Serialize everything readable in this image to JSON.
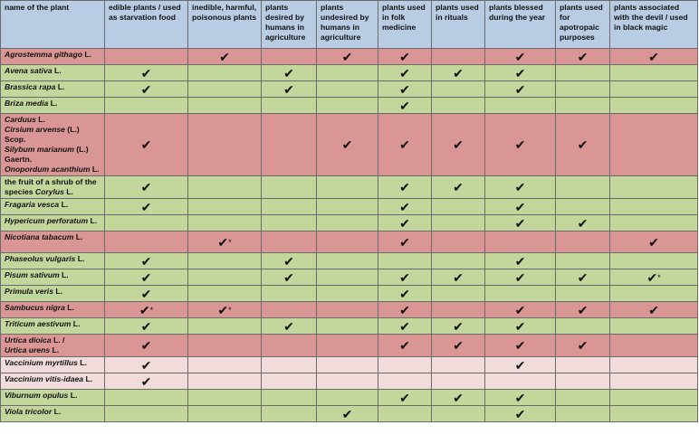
{
  "headers": [
    "name of the plant",
    "edible plants / used as starvation food",
    "inedible, harmful, poisonous plants",
    "plants desired by humans in agriculture",
    "plants undesired by humans in agriculture",
    "plants used in folk medicine",
    "plants used in rituals",
    "plants blessed during the year",
    "plants used for apotropaic purposes",
    "plants associated with the devil / used in black magic"
  ],
  "check_mark": "✔",
  "star_mark": "*",
  "row_colors": {
    "red": "#da9694",
    "green": "#c3d69b",
    "pink": "#f2dcdb",
    "header": "#b8cce4"
  },
  "rows": [
    {
      "color": "red",
      "lines": [
        [
          {
            "t": "Agrostemma githago",
            "i": true
          },
          {
            "t": " L.",
            "i": false
          }
        ]
      ],
      "cells": [
        "",
        "c",
        "",
        "c",
        "c",
        "",
        "c",
        "c",
        "c"
      ]
    },
    {
      "color": "green",
      "lines": [
        [
          {
            "t": "Avena sativa",
            "i": true
          },
          {
            "t": " L.",
            "i": false
          }
        ]
      ],
      "cells": [
        "c",
        "",
        "c",
        "",
        "c",
        "c",
        "c",
        "",
        ""
      ]
    },
    {
      "color": "green",
      "lines": [
        [
          {
            "t": "Brassica rapa",
            "i": true
          },
          {
            "t": " L.",
            "i": false
          }
        ]
      ],
      "cells": [
        "c",
        "",
        "c",
        "",
        "c",
        "",
        "c",
        "",
        ""
      ]
    },
    {
      "color": "green",
      "lines": [
        [
          {
            "t": "Briza media",
            "i": true
          },
          {
            "t": " L.",
            "i": false
          }
        ]
      ],
      "cells": [
        "",
        "",
        "",
        "",
        "c",
        "",
        "",
        "",
        ""
      ]
    },
    {
      "color": "red",
      "lines": [
        [
          {
            "t": "Carduus",
            "i": true
          },
          {
            "t": " L.",
            "i": false
          }
        ],
        [
          {
            "t": "Cirsium arvense",
            "i": true
          },
          {
            "t": " (L.) Scop.",
            "i": false
          }
        ],
        [
          {
            "t": "Silybum marianum",
            "i": true
          },
          {
            "t": " (L.) Gaertn.",
            "i": false
          }
        ],
        [
          {
            "t": "Onopordum acanthium",
            "i": true
          },
          {
            "t": " L.",
            "i": false
          }
        ]
      ],
      "cells": [
        "c",
        "",
        "",
        "c",
        "c",
        "c",
        "c",
        "c",
        ""
      ]
    },
    {
      "color": "green",
      "lines": [
        [
          {
            "t": "the fruit of a shrub of the species ",
            "i": false
          },
          {
            "t": "Corylus",
            "i": true
          },
          {
            "t": " L.",
            "i": false
          }
        ]
      ],
      "cells": [
        "c",
        "",
        "",
        "",
        "c",
        "c",
        "c",
        "",
        ""
      ]
    },
    {
      "color": "green",
      "lines": [
        [
          {
            "t": "Fragaria vesca",
            "i": true
          },
          {
            "t": " L.",
            "i": false
          }
        ]
      ],
      "cells": [
        "c",
        "",
        "",
        "",
        "c",
        "",
        "c",
        "",
        ""
      ]
    },
    {
      "color": "green",
      "lines": [
        [
          {
            "t": "Hypericum perforatum",
            "i": true
          },
          {
            "t": " L.",
            "i": false
          }
        ]
      ],
      "cells": [
        "",
        "",
        "",
        "",
        "c",
        "",
        "c",
        "c",
        ""
      ]
    },
    {
      "color": "red",
      "lines": [
        [
          {
            "t": "Nicotiana tabacum",
            "i": true
          },
          {
            "t": " L.",
            "i": false
          }
        ]
      ],
      "cells": [
        "",
        "c*",
        "",
        "",
        "c",
        "",
        "",
        "",
        "c"
      ]
    },
    {
      "color": "green",
      "lines": [
        [
          {
            "t": "Phaseolus vulgaris",
            "i": true
          },
          {
            "t": " L.",
            "i": false
          }
        ]
      ],
      "cells": [
        "c",
        "",
        "c",
        "",
        "",
        "",
        "c",
        "",
        ""
      ]
    },
    {
      "color": "green",
      "lines": [
        [
          {
            "t": "Pisum sativum",
            "i": true
          },
          {
            "t": " L.",
            "i": false
          }
        ]
      ],
      "cells": [
        "c",
        "",
        "c",
        "",
        "c",
        "c",
        "c",
        "c",
        "c*"
      ]
    },
    {
      "color": "green",
      "lines": [
        [
          {
            "t": "Primula veris",
            "i": true
          },
          {
            "t": " L.",
            "i": false
          }
        ]
      ],
      "cells": [
        "c",
        "",
        "",
        "",
        "c",
        "",
        "",
        "",
        ""
      ]
    },
    {
      "color": "red",
      "lines": [
        [
          {
            "t": "Sambucus nigra",
            "i": true
          },
          {
            "t": " L.",
            "i": false
          }
        ]
      ],
      "cells": [
        "c*",
        "c*",
        "",
        "",
        "c",
        "",
        "c",
        "c",
        "c"
      ]
    },
    {
      "color": "green",
      "lines": [
        [
          {
            "t": "Triticum aestivum",
            "i": true
          },
          {
            "t": " L.",
            "i": false
          }
        ]
      ],
      "cells": [
        "c",
        "",
        "c",
        "",
        "c",
        "c",
        "c",
        "",
        ""
      ]
    },
    {
      "color": "red",
      "lines": [
        [
          {
            "t": "Urtica dioica",
            "i": true
          },
          {
            "t": " L. /",
            "i": false
          }
        ],
        [
          {
            "t": "Urtica urens",
            "i": true
          },
          {
            "t": " L.",
            "i": false
          }
        ]
      ],
      "cells": [
        "c",
        "",
        "",
        "",
        "c",
        "c",
        "c",
        "c",
        ""
      ]
    },
    {
      "color": "pink",
      "lines": [
        [
          {
            "t": "Vaccinium myrtillus",
            "i": true
          },
          {
            "t": " L.",
            "i": false
          }
        ]
      ],
      "cells": [
        "c",
        "",
        "",
        "",
        "",
        "",
        "c",
        "",
        ""
      ]
    },
    {
      "color": "pink",
      "lines": [
        [
          {
            "t": "Vaccinium vitis-idaea",
            "i": true
          },
          {
            "t": " L.",
            "i": false
          }
        ]
      ],
      "cells": [
        "c",
        "",
        "",
        "",
        "",
        "",
        "",
        "",
        ""
      ]
    },
    {
      "color": "green",
      "lines": [
        [
          {
            "t": "Viburnum opulus",
            "i": true
          },
          {
            "t": " L.",
            "i": false
          }
        ]
      ],
      "cells": [
        "",
        "",
        "",
        "",
        "c",
        "c",
        "c",
        "",
        ""
      ]
    },
    {
      "color": "green",
      "lines": [
        [
          {
            "t": "Viola tricolor",
            "i": true
          },
          {
            "t": " L.",
            "i": false
          }
        ]
      ],
      "cells": [
        "",
        "",
        "",
        "c",
        "",
        "",
        "c",
        "",
        ""
      ]
    }
  ]
}
